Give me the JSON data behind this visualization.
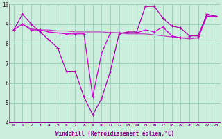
{
  "x": [
    0,
    1,
    2,
    3,
    4,
    5,
    6,
    7,
    8,
    9,
    10,
    11,
    12,
    13,
    14,
    15,
    16,
    17,
    18,
    19,
    20,
    21,
    22,
    23
  ],
  "line_spiky": [
    8.7,
    9.5,
    9.0,
    8.6,
    8.2,
    7.8,
    6.6,
    6.6,
    5.3,
    4.4,
    5.2,
    6.6,
    8.5,
    8.6,
    8.6,
    9.9,
    9.9,
    9.3,
    8.9,
    8.8,
    8.4,
    8.4,
    9.5,
    9.4
  ],
  "line_mid": [
    8.7,
    9.0,
    8.7,
    8.7,
    8.6,
    8.55,
    8.5,
    8.5,
    8.5,
    5.3,
    7.5,
    8.55,
    8.55,
    8.55,
    8.55,
    8.7,
    8.6,
    8.85,
    8.4,
    8.3,
    8.3,
    8.3,
    9.4,
    9.4
  ],
  "line_smooth": [
    8.7,
    9.0,
    8.75,
    8.7,
    8.7,
    8.65,
    8.65,
    8.6,
    8.6,
    8.6,
    8.6,
    8.57,
    8.55,
    8.5,
    8.5,
    8.5,
    8.45,
    8.4,
    8.35,
    8.3,
    8.25,
    8.3,
    9.4,
    9.4
  ],
  "color_spiky": "#aa00aa",
  "color_mid": "#cc00cc",
  "color_smooth": "#bb44bb",
  "bg_color": "#cceedd",
  "grid_color": "#99ccbb",
  "xlabel": "Windchill (Refroidissement éolien,°C)",
  "ylim": [
    4,
    10
  ],
  "xlim_min": -0.5,
  "xlim_max": 23.5
}
